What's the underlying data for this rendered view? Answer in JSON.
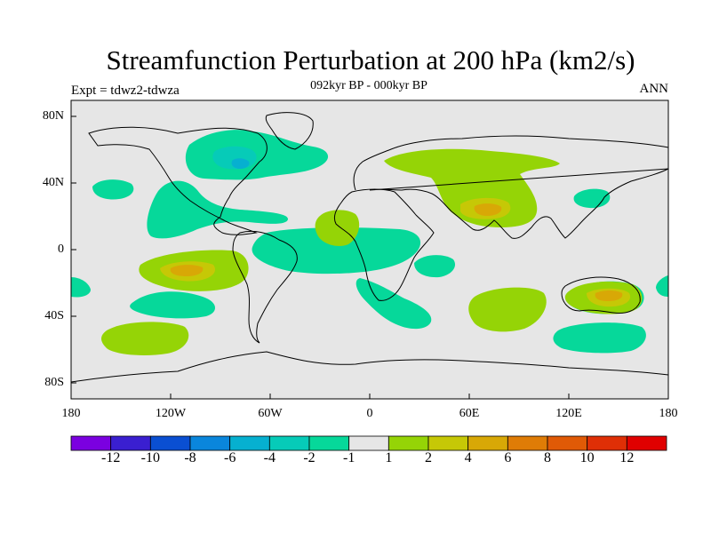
{
  "plot": {
    "title": "Streamfunction Perturbation at 200 hPa (km2/s)",
    "subtitle": "092kyr BP - 000kyr BP",
    "left_label": "Expt = tdwz2-tdwza",
    "right_label": "ANN"
  },
  "axes": {
    "lat_labels": [
      "80N",
      "40N",
      "0",
      "40S",
      "80S"
    ],
    "lon_labels": [
      "180",
      "120W",
      "60W",
      "0",
      "60E",
      "120E",
      "180"
    ]
  },
  "colorbar": {
    "labels": [
      "-12",
      "-10",
      "-8",
      "-6",
      "-4",
      "-2",
      "-1",
      "1",
      "2",
      "4",
      "6",
      "8",
      "10",
      "12"
    ],
    "colors": [
      "#7b00e0",
      "#3a1fd0",
      "#0a4fd2",
      "#0a86dc",
      "#06b0d0",
      "#06cbb8",
      "#06d89a",
      "#e6e6e6",
      "#95d406",
      "#c6c806",
      "#d8a806",
      "#df7c06",
      "#e05a06",
      "#df2f06",
      "#e00000"
    ]
  },
  "map_colors": {
    "background": "#e6e6e6",
    "neg_weak": "#06d89a",
    "neg_mid": "#06cbb8",
    "neg_strong": "#06b0d0",
    "pos_weak": "#95d406",
    "pos_mid": "#c6c806",
    "pos_strong": "#d8a806"
  }
}
